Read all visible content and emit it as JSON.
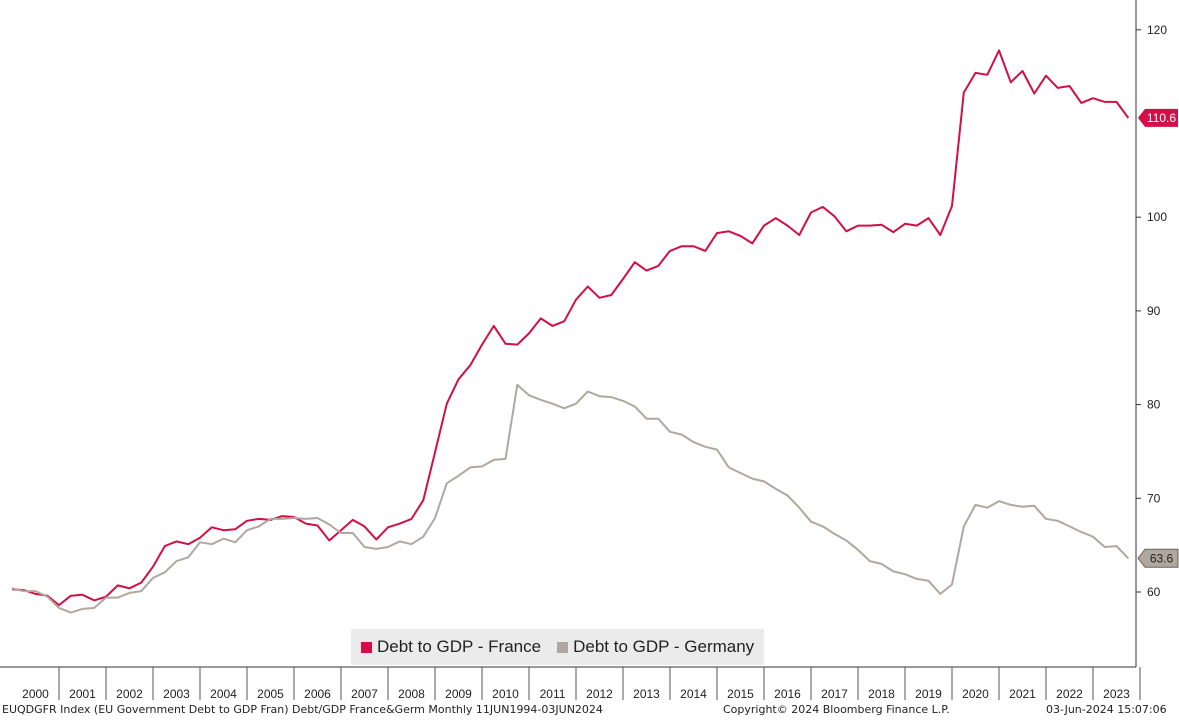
{
  "chart_data": {
    "type": "line",
    "y_ticks": [
      60,
      70,
      80,
      90,
      100,
      120
    ],
    "ylim": [
      50,
      122
    ],
    "x_years": [
      "2000",
      "2001",
      "2002",
      "2003",
      "2004",
      "2005",
      "2006",
      "2007",
      "2008",
      "2009",
      "2010",
      "2011",
      "2012",
      "2013",
      "2014",
      "2015",
      "2016",
      "2017",
      "2018",
      "2019",
      "2020",
      "2021",
      "2022",
      "2023"
    ],
    "series": [
      {
        "name": "Debt to GDP - France",
        "color": "#d20f46",
        "last_label": "110.6",
        "points": [
          [
            2000.0,
            60.3
          ],
          [
            2000.25,
            60.2
          ],
          [
            2000.5,
            59.8
          ],
          [
            2000.75,
            59.6
          ],
          [
            2001.0,
            58.6
          ],
          [
            2001.25,
            59.6
          ],
          [
            2001.5,
            59.7
          ],
          [
            2001.75,
            59.1
          ],
          [
            2002.0,
            59.5
          ],
          [
            2002.25,
            60.7
          ],
          [
            2002.5,
            60.4
          ],
          [
            2002.75,
            61.0
          ],
          [
            2003.0,
            62.7
          ],
          [
            2003.25,
            64.9
          ],
          [
            2003.5,
            65.4
          ],
          [
            2003.75,
            65.1
          ],
          [
            2004.0,
            65.8
          ],
          [
            2004.25,
            66.9
          ],
          [
            2004.5,
            66.6
          ],
          [
            2004.75,
            66.7
          ],
          [
            2005.0,
            67.6
          ],
          [
            2005.25,
            67.8
          ],
          [
            2005.5,
            67.7
          ],
          [
            2005.75,
            68.1
          ],
          [
            2006.0,
            68.0
          ],
          [
            2006.25,
            67.3
          ],
          [
            2006.5,
            67.1
          ],
          [
            2006.75,
            65.5
          ],
          [
            2007.0,
            66.6
          ],
          [
            2007.25,
            67.7
          ],
          [
            2007.5,
            67.0
          ],
          [
            2007.75,
            65.6
          ],
          [
            2008.0,
            66.9
          ],
          [
            2008.25,
            67.3
          ],
          [
            2008.5,
            67.8
          ],
          [
            2008.75,
            69.8
          ],
          [
            2009.0,
            74.9
          ],
          [
            2009.25,
            80.1
          ],
          [
            2009.5,
            82.7
          ],
          [
            2009.75,
            84.2
          ],
          [
            2010.0,
            86.4
          ],
          [
            2010.25,
            88.4
          ],
          [
            2010.5,
            86.5
          ],
          [
            2010.75,
            86.4
          ],
          [
            2011.0,
            87.6
          ],
          [
            2011.25,
            89.2
          ],
          [
            2011.5,
            88.4
          ],
          [
            2011.75,
            88.9
          ],
          [
            2012.0,
            91.2
          ],
          [
            2012.25,
            92.6
          ],
          [
            2012.5,
            91.4
          ],
          [
            2012.75,
            91.7
          ],
          [
            2013.0,
            93.4
          ],
          [
            2013.25,
            95.2
          ],
          [
            2013.5,
            94.3
          ],
          [
            2013.75,
            94.8
          ],
          [
            2014.0,
            96.4
          ],
          [
            2014.25,
            96.9
          ],
          [
            2014.5,
            96.9
          ],
          [
            2014.75,
            96.4
          ],
          [
            2015.0,
            98.3
          ],
          [
            2015.25,
            98.5
          ],
          [
            2015.5,
            98.0
          ],
          [
            2015.75,
            97.2
          ],
          [
            2016.0,
            99.1
          ],
          [
            2016.25,
            99.9
          ],
          [
            2016.5,
            99.1
          ],
          [
            2016.75,
            98.1
          ],
          [
            2017.0,
            100.5
          ],
          [
            2017.25,
            101.1
          ],
          [
            2017.5,
            100.1
          ],
          [
            2017.75,
            98.5
          ],
          [
            2018.0,
            99.1
          ],
          [
            2018.25,
            99.1
          ],
          [
            2018.5,
            99.2
          ],
          [
            2018.75,
            98.4
          ],
          [
            2019.0,
            99.3
          ],
          [
            2019.25,
            99.1
          ],
          [
            2019.5,
            99.9
          ],
          [
            2019.75,
            98.1
          ],
          [
            2020.0,
            101.2
          ],
          [
            2020.25,
            113.3
          ],
          [
            2020.5,
            115.4
          ],
          [
            2020.75,
            115.2
          ],
          [
            2021.0,
            117.8
          ],
          [
            2021.25,
            114.4
          ],
          [
            2021.5,
            115.6
          ],
          [
            2021.75,
            113.2
          ],
          [
            2022.0,
            115.1
          ],
          [
            2022.25,
            113.8
          ],
          [
            2022.5,
            114.0
          ],
          [
            2022.75,
            112.2
          ],
          [
            2023.0,
            112.7
          ],
          [
            2023.25,
            112.3
          ],
          [
            2023.5,
            112.3
          ],
          [
            2023.75,
            110.6
          ]
        ]
      },
      {
        "name": "Debt to GDP - Germany",
        "color": "#b0a89e",
        "last_label": "63.6",
        "points": [
          [
            2000.0,
            60.4
          ],
          [
            2000.25,
            60.1
          ],
          [
            2000.5,
            60.1
          ],
          [
            2000.75,
            59.5
          ],
          [
            2001.0,
            58.3
          ],
          [
            2001.25,
            57.8
          ],
          [
            2001.5,
            58.2
          ],
          [
            2001.75,
            58.3
          ],
          [
            2002.0,
            59.4
          ],
          [
            2002.25,
            59.4
          ],
          [
            2002.5,
            59.9
          ],
          [
            2002.75,
            60.1
          ],
          [
            2003.0,
            61.5
          ],
          [
            2003.25,
            62.1
          ],
          [
            2003.5,
            63.3
          ],
          [
            2003.75,
            63.7
          ],
          [
            2004.0,
            65.3
          ],
          [
            2004.25,
            65.1
          ],
          [
            2004.5,
            65.7
          ],
          [
            2004.75,
            65.3
          ],
          [
            2005.0,
            66.6
          ],
          [
            2005.25,
            67.0
          ],
          [
            2005.5,
            67.8
          ],
          [
            2005.75,
            67.8
          ],
          [
            2006.0,
            67.9
          ],
          [
            2006.25,
            67.8
          ],
          [
            2006.5,
            67.9
          ],
          [
            2006.75,
            67.2
          ],
          [
            2007.0,
            66.3
          ],
          [
            2007.25,
            66.3
          ],
          [
            2007.5,
            64.8
          ],
          [
            2007.75,
            64.6
          ],
          [
            2008.0,
            64.8
          ],
          [
            2008.25,
            65.4
          ],
          [
            2008.5,
            65.1
          ],
          [
            2008.75,
            65.9
          ],
          [
            2009.0,
            67.9
          ],
          [
            2009.25,
            71.6
          ],
          [
            2009.5,
            72.4
          ],
          [
            2009.75,
            73.3
          ],
          [
            2010.0,
            73.4
          ],
          [
            2010.25,
            74.1
          ],
          [
            2010.5,
            74.2
          ],
          [
            2010.75,
            82.1
          ],
          [
            2011.0,
            81.0
          ],
          [
            2011.25,
            80.5
          ],
          [
            2011.5,
            80.1
          ],
          [
            2011.75,
            79.6
          ],
          [
            2012.0,
            80.1
          ],
          [
            2012.25,
            81.4
          ],
          [
            2012.5,
            80.9
          ],
          [
            2012.75,
            80.8
          ],
          [
            2013.0,
            80.4
          ],
          [
            2013.25,
            79.8
          ],
          [
            2013.5,
            78.5
          ],
          [
            2013.75,
            78.5
          ],
          [
            2014.0,
            77.1
          ],
          [
            2014.25,
            76.8
          ],
          [
            2014.5,
            76.0
          ],
          [
            2014.75,
            75.5
          ],
          [
            2015.0,
            75.2
          ],
          [
            2015.25,
            73.3
          ],
          [
            2015.5,
            72.7
          ],
          [
            2015.75,
            72.1
          ],
          [
            2016.0,
            71.8
          ],
          [
            2016.25,
            71.0
          ],
          [
            2016.5,
            70.3
          ],
          [
            2016.75,
            69.0
          ],
          [
            2017.0,
            67.5
          ],
          [
            2017.25,
            67.0
          ],
          [
            2017.5,
            66.2
          ],
          [
            2017.75,
            65.5
          ],
          [
            2018.0,
            64.5
          ],
          [
            2018.25,
            63.3
          ],
          [
            2018.5,
            63.0
          ],
          [
            2018.75,
            62.2
          ],
          [
            2019.0,
            61.9
          ],
          [
            2019.25,
            61.4
          ],
          [
            2019.5,
            61.2
          ],
          [
            2019.75,
            59.8
          ],
          [
            2020.0,
            60.8
          ],
          [
            2020.25,
            67.0
          ],
          [
            2020.5,
            69.3
          ],
          [
            2020.75,
            69.0
          ],
          [
            2021.0,
            69.7
          ],
          [
            2021.25,
            69.3
          ],
          [
            2021.5,
            69.1
          ],
          [
            2021.75,
            69.2
          ],
          [
            2022.0,
            67.8
          ],
          [
            2022.25,
            67.6
          ],
          [
            2022.5,
            67.0
          ],
          [
            2022.75,
            66.4
          ],
          [
            2023.0,
            65.9
          ],
          [
            2023.25,
            64.8
          ],
          [
            2023.5,
            64.9
          ],
          [
            2023.75,
            63.6
          ]
        ]
      }
    ]
  },
  "footer": {
    "left": "EUQDGFR Index (EU Government Debt to GDP Fran) Debt/GDP France&Germ  Monthly 11JUN1994-03JUN2024",
    "center": "Copyright© 2024 Bloomberg Finance L.P.",
    "right": "03-Jun-2024 15:07:06"
  }
}
